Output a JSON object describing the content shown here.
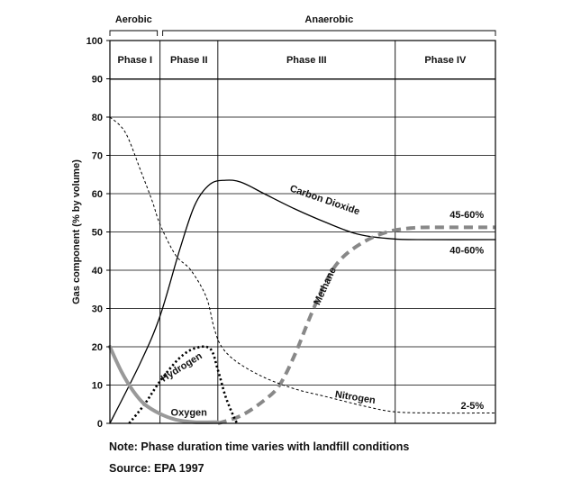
{
  "chart_data": {
    "type": "line",
    "ylabel": "Gas component (% by volume)",
    "ylim": [
      0,
      100
    ],
    "yticks": [
      0,
      10,
      20,
      30,
      40,
      50,
      60,
      70,
      80,
      90,
      100
    ],
    "grid": true,
    "x_scale": "relative time (no numeric axis)",
    "regimes": [
      {
        "label": "Aerobic",
        "phases": [
          "Phase I"
        ]
      },
      {
        "label": "Anaerobic",
        "phases": [
          "Phase II",
          "Phase III",
          "Phase IV"
        ]
      }
    ],
    "phases": [
      "Phase I",
      "Phase II",
      "Phase III",
      "Phase IV"
    ],
    "phase_boundaries": [
      0,
      13,
      28,
      74,
      100
    ],
    "series": [
      {
        "name": "Carbon Dioxide",
        "style": "solid",
        "color": "#000000",
        "points": [
          [
            0,
            0
          ],
          [
            8,
            16
          ],
          [
            13,
            28
          ],
          [
            18,
            45
          ],
          [
            22,
            57
          ],
          [
            26,
            62.5
          ],
          [
            30,
            63.5
          ],
          [
            34,
            63
          ],
          [
            40,
            60
          ],
          [
            48,
            56
          ],
          [
            56,
            52.5
          ],
          [
            64,
            49.5
          ],
          [
            72,
            48.3
          ],
          [
            80,
            48
          ],
          [
            100,
            48
          ]
        ]
      },
      {
        "name": "Methane",
        "style": "dashed-thick",
        "color": "#888888",
        "points": [
          [
            28,
            0
          ],
          [
            34,
            2
          ],
          [
            40,
            6
          ],
          [
            44,
            10
          ],
          [
            48,
            18
          ],
          [
            52,
            28
          ],
          [
            56,
            37
          ],
          [
            60,
            43
          ],
          [
            66,
            47.5
          ],
          [
            72,
            50
          ],
          [
            78,
            51
          ],
          [
            84,
            51.2
          ],
          [
            100,
            51.2
          ]
        ]
      },
      {
        "name": "Nitrogen",
        "style": "dashed-thin",
        "color": "#000000",
        "points": [
          [
            0,
            80
          ],
          [
            4,
            76
          ],
          [
            8,
            66
          ],
          [
            11,
            58
          ],
          [
            13,
            52
          ],
          [
            17,
            44
          ],
          [
            21,
            40
          ],
          [
            25,
            33
          ],
          [
            27,
            25
          ],
          [
            29,
            20
          ],
          [
            33,
            16
          ],
          [
            40,
            12
          ],
          [
            48,
            9
          ],
          [
            56,
            7
          ],
          [
            66,
            4.5
          ],
          [
            74,
            3
          ],
          [
            85,
            2.7
          ],
          [
            100,
            2.7
          ]
        ]
      },
      {
        "name": "Hydrogen",
        "style": "dotted-thick",
        "color": "#000000",
        "points": [
          [
            5,
            0
          ],
          [
            9,
            5
          ],
          [
            13,
            11
          ],
          [
            18,
            17
          ],
          [
            22,
            19.6
          ],
          [
            26,
            19.5
          ],
          [
            28,
            14
          ],
          [
            30,
            7
          ],
          [
            32,
            2
          ],
          [
            33,
            0
          ]
        ]
      },
      {
        "name": "Oxygen",
        "style": "solid-thick",
        "color": "#999999",
        "points": [
          [
            0,
            20
          ],
          [
            3,
            13.5
          ],
          [
            6,
            8.5
          ],
          [
            9,
            5
          ],
          [
            13,
            2.5
          ],
          [
            17,
            1
          ],
          [
            22,
            0.3
          ],
          [
            28,
            0.3
          ]
        ]
      }
    ],
    "annotations": [
      "45-60%",
      "40-60%",
      "2-5%"
    ]
  },
  "notes": {
    "note": "Note:  Phase duration time varies with landfill conditions",
    "source": "Source: EPA 1997"
  }
}
